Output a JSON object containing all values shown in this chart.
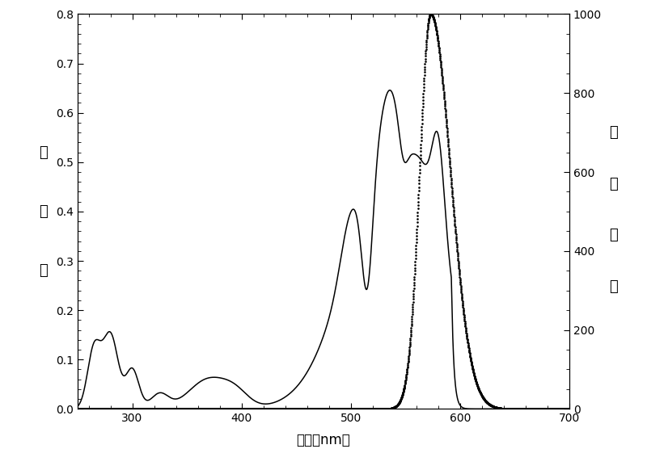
{
  "xlabel": "波长（nm）",
  "ylabel_left_chars": [
    "吸",
    "光",
    "度"
  ],
  "ylabel_right_chars": [
    "相",
    "对",
    "荧",
    "光"
  ],
  "xlim": [
    250,
    700
  ],
  "ylim_left": [
    0.0,
    0.8
  ],
  "ylim_right": [
    0,
    1000
  ],
  "xticks": [
    300,
    400,
    500,
    600,
    700
  ],
  "yticks_left": [
    0.0,
    0.1,
    0.2,
    0.3,
    0.4,
    0.5,
    0.6,
    0.7,
    0.8
  ],
  "yticks_right": [
    0,
    200,
    400,
    600,
    800,
    1000
  ],
  "background_color": "#ffffff",
  "line_color": "#000000"
}
